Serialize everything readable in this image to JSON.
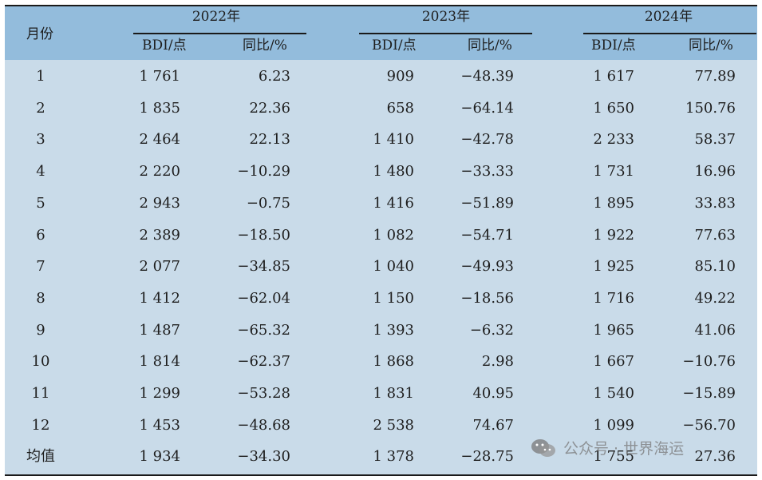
{
  "colors": {
    "header_band": "#93bcdc",
    "body": "#c9dbe9",
    "rule": "#1a1a1a"
  },
  "header": {
    "month_col": "月份",
    "years": [
      "2022年",
      "2023年",
      "2024年"
    ],
    "sub": [
      "BDI/点",
      "同比/%",
      "BDI/点",
      "同比/%",
      "BDI/点",
      "同比/%"
    ]
  },
  "chart_data": {
    "type": "table",
    "columns": [
      "月份",
      "2022年 BDI/点",
      "2022年 同比/%",
      "2023年 BDI/点",
      "2023年 同比/%",
      "2024年 BDI/点",
      "2024年 同比/%"
    ],
    "rows": [
      [
        "1",
        "1 761",
        "6.23",
        "909",
        "−48.39",
        "1 617",
        "77.89"
      ],
      [
        "2",
        "1 835",
        "22.36",
        "658",
        "−64.14",
        "1 650",
        "150.76"
      ],
      [
        "3",
        "2 464",
        "22.13",
        "1 410",
        "−42.78",
        "2 233",
        "58.37"
      ],
      [
        "4",
        "2 220",
        "−10.29",
        "1 480",
        "−33.33",
        "1 731",
        "16.96"
      ],
      [
        "5",
        "2 943",
        "−0.75",
        "1 416",
        "−51.89",
        "1 895",
        "33.83"
      ],
      [
        "6",
        "2 389",
        "−18.50",
        "1 082",
        "−54.71",
        "1 922",
        "77.63"
      ],
      [
        "7",
        "2 077",
        "−34.85",
        "1 040",
        "−49.93",
        "1 925",
        "85.10"
      ],
      [
        "8",
        "1 412",
        "−62.04",
        "1 150",
        "−18.56",
        "1 716",
        "49.22"
      ],
      [
        "9",
        "1 487",
        "−65.32",
        "1 393",
        "−6.32",
        "1 965",
        "41.06"
      ],
      [
        "10",
        "1 814",
        "−62.37",
        "1 868",
        "2.98",
        "1 667",
        "−10.76"
      ],
      [
        "11",
        "1 299",
        "−53.28",
        "1 831",
        "40.95",
        "1 540",
        "−15.89"
      ],
      [
        "12",
        "1 453",
        "−48.68",
        "2 538",
        "74.67",
        "1 099",
        "−56.70"
      ],
      [
        "均值",
        "1 934",
        "−34.30",
        "1 378",
        "−28.75",
        "1 755",
        "27.36"
      ]
    ]
  },
  "watermark": {
    "text": "公众号 · 世界海运",
    "icon": "wechat-icon"
  }
}
